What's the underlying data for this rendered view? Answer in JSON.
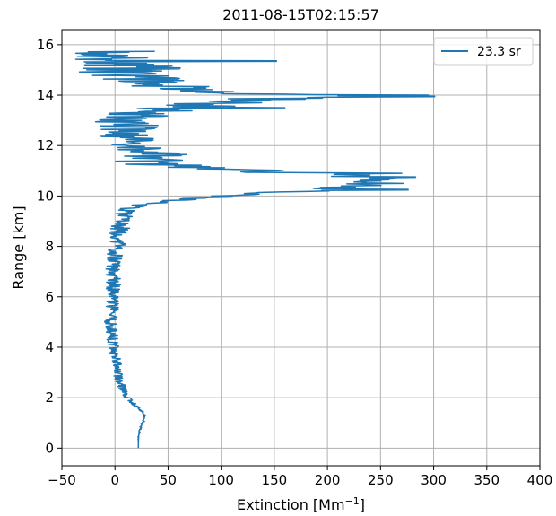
{
  "chart_data": {
    "type": "line",
    "title": "2011-08-15T02:15:57",
    "xlabel": "Extinction [Mm",
    "xlabel_exponent": "−1",
    "xlabel_close": "]",
    "ylabel": "Range [km]",
    "xlim": [
      -50,
      400
    ],
    "ylim": [
      -0.7,
      16.6
    ],
    "xticks": [
      -50,
      0,
      50,
      100,
      150,
      200,
      250,
      300,
      350,
      400
    ],
    "xtick_labels": [
      "−50",
      "0",
      "50",
      "100",
      "150",
      "200",
      "250",
      "300",
      "350",
      "400"
    ],
    "yticks": [
      0,
      2,
      4,
      6,
      8,
      10,
      12,
      14,
      16
    ],
    "ytick_labels": [
      "0",
      "2",
      "4",
      "6",
      "8",
      "10",
      "12",
      "14",
      "16"
    ],
    "grid": true,
    "legend": {
      "placement": "top-right"
    },
    "series": [
      {
        "name": "23.3 sr",
        "color": "#1f77b4",
        "profile": [
          [
            0.0,
            22
          ],
          [
            0.5,
            22
          ],
          [
            0.8,
            24
          ],
          [
            1.0,
            26
          ],
          [
            1.2,
            28
          ],
          [
            1.4,
            26
          ],
          [
            1.6,
            22
          ],
          [
            1.8,
            16
          ],
          [
            2.0,
            12
          ],
          [
            2.3,
            8
          ],
          [
            2.6,
            5
          ],
          [
            3.0,
            2
          ],
          [
            3.5,
            1
          ],
          [
            4.0,
            -1
          ],
          [
            4.5,
            -3
          ],
          [
            5.0,
            -4
          ],
          [
            5.5,
            -3
          ],
          [
            6.0,
            -2
          ],
          [
            6.5,
            -1
          ],
          [
            7.0,
            -2
          ],
          [
            7.5,
            -1
          ],
          [
            8.0,
            2
          ],
          [
            8.5,
            4
          ],
          [
            9.0,
            6
          ],
          [
            9.3,
            8
          ],
          [
            9.6,
            18
          ],
          [
            9.8,
            50
          ],
          [
            10.0,
            100
          ],
          [
            10.2,
            180
          ],
          [
            10.4,
            240
          ],
          [
            10.6,
            255
          ],
          [
            10.8,
            230
          ],
          [
            11.0,
            130
          ],
          [
            11.2,
            50
          ],
          [
            11.4,
            30
          ],
          [
            11.6,
            40
          ],
          [
            11.8,
            30
          ],
          [
            12.0,
            20
          ],
          [
            12.3,
            10
          ],
          [
            12.6,
            15
          ],
          [
            13.0,
            10
          ],
          [
            13.3,
            20
          ],
          [
            13.6,
            80
          ],
          [
            13.8,
            140
          ],
          [
            14.0,
            180
          ],
          [
            14.2,
            80
          ],
          [
            14.5,
            20
          ],
          [
            14.8,
            10
          ],
          [
            15.0,
            20
          ],
          [
            15.3,
            10
          ],
          [
            15.6,
            0
          ]
        ],
        "noise": [
          [
            0.0,
            0
          ],
          [
            1.6,
            2
          ],
          [
            2.5,
            4
          ],
          [
            8.0,
            8
          ],
          [
            9.5,
            10
          ],
          [
            10.0,
            25
          ],
          [
            10.5,
            35
          ],
          [
            11.0,
            40
          ],
          [
            12.0,
            25
          ],
          [
            13.0,
            30
          ],
          [
            14.0,
            50
          ],
          [
            15.0,
            50
          ],
          [
            15.7,
            40
          ]
        ],
        "peaks": [
          [
            10.25,
            276
          ],
          [
            10.75,
            283
          ],
          [
            10.9,
            270
          ],
          [
            13.95,
            301
          ],
          [
            14.0,
            295
          ],
          [
            15.35,
            152
          ],
          [
            13.5,
            160
          ]
        ],
        "max_range": 15.75,
        "step": 0.02
      }
    ]
  }
}
